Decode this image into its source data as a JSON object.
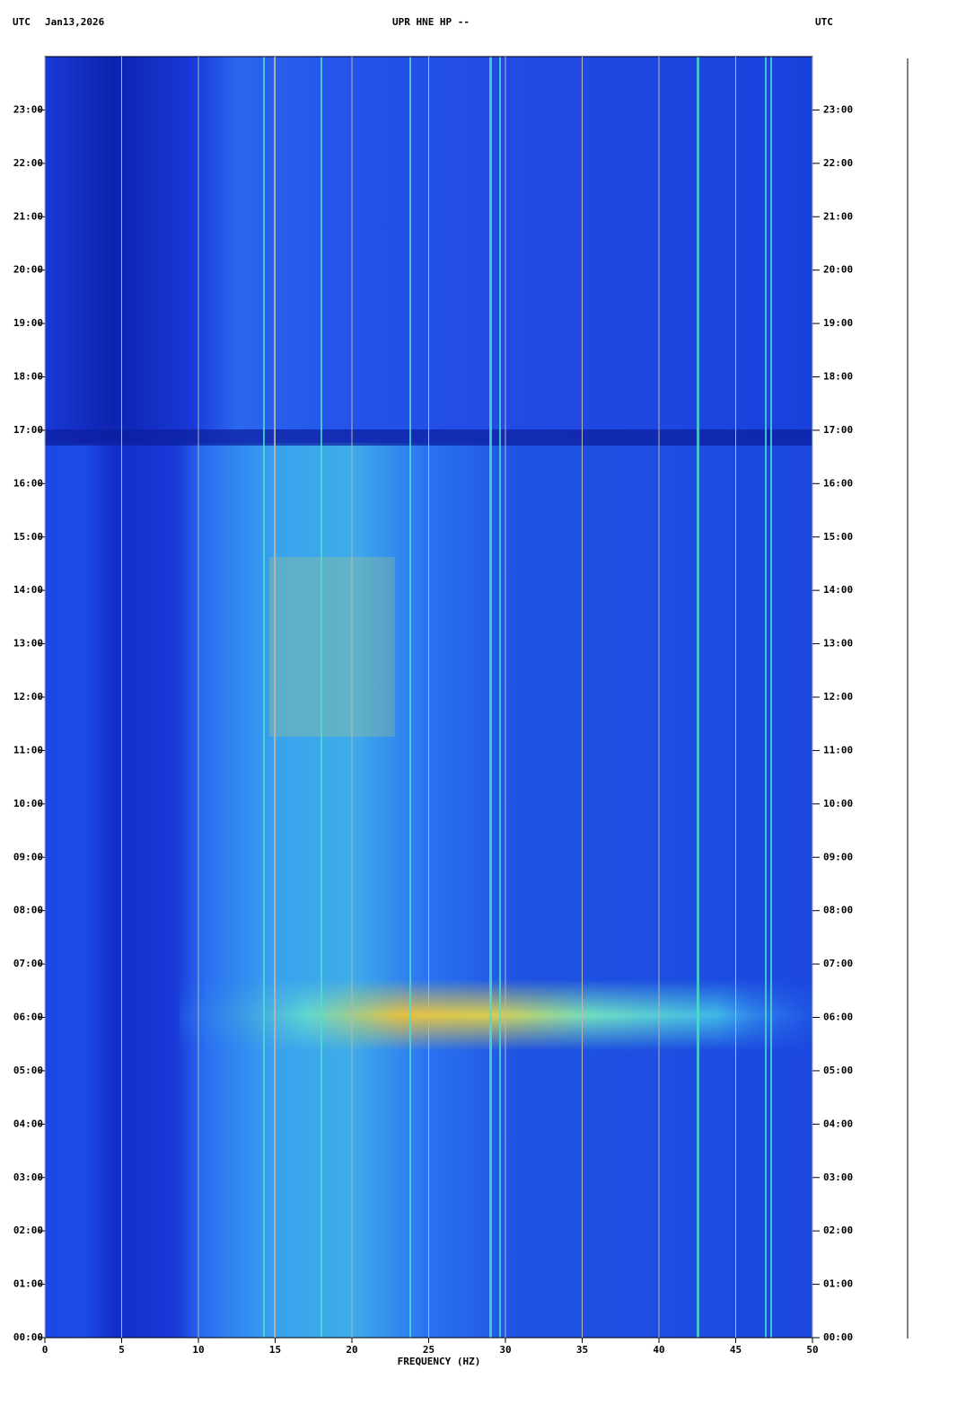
{
  "chart_data": {
    "type": "spectrogram",
    "title": "UPR HNE HP --",
    "time_zone_left": "UTC",
    "date": "Jan13,2026",
    "time_zone_right": "UTC",
    "xlabel": "FREQUENCY (HZ)",
    "xlim": [
      0,
      50
    ],
    "xticks": [
      0,
      5,
      10,
      15,
      20,
      25,
      30,
      35,
      40,
      45,
      50
    ],
    "ylim": [
      0,
      24
    ],
    "yticks": [
      {
        "value": 0,
        "label": "00:00"
      },
      {
        "value": 1,
        "label": "01:00"
      },
      {
        "value": 2,
        "label": "02:00"
      },
      {
        "value": 3,
        "label": "03:00"
      },
      {
        "value": 4,
        "label": "04:00"
      },
      {
        "value": 5,
        "label": "05:00"
      },
      {
        "value": 6,
        "label": "06:00"
      },
      {
        "value": 7,
        "label": "07:00"
      },
      {
        "value": 8,
        "label": "08:00"
      },
      {
        "value": 9,
        "label": "09:00"
      },
      {
        "value": 10,
        "label": "10:00"
      },
      {
        "value": 11,
        "label": "11:00"
      },
      {
        "value": 12,
        "label": "12:00"
      },
      {
        "value": 13,
        "label": "13:00"
      },
      {
        "value": 14,
        "label": "14:00"
      },
      {
        "value": 15,
        "label": "15:00"
      },
      {
        "value": 16,
        "label": "16:00"
      },
      {
        "value": 17,
        "label": "17:00"
      },
      {
        "value": 18,
        "label": "18:00"
      },
      {
        "value": 19,
        "label": "19:00"
      },
      {
        "value": 20,
        "label": "20:00"
      },
      {
        "value": 21,
        "label": "21:00"
      },
      {
        "value": 22,
        "label": "22:00"
      },
      {
        "value": 23,
        "label": "23:00"
      }
    ],
    "grid": true
  }
}
